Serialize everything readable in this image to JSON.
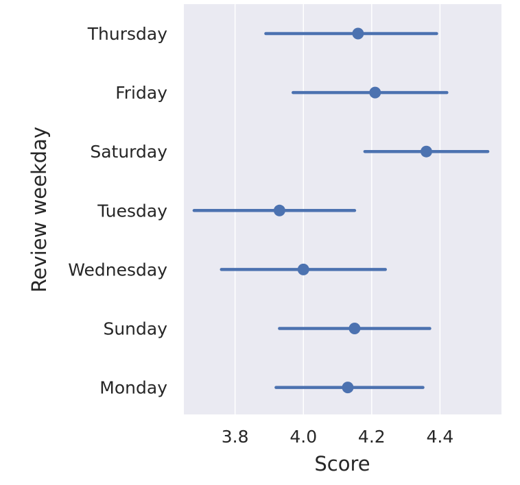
{
  "chart_data": {
    "type": "pointplot",
    "orientation": "horizontal",
    "xlabel": "Score",
    "ylabel": "Review weekday",
    "xlim": [
      3.65,
      4.58
    ],
    "xticks": [
      3.8,
      4.0,
      4.2,
      4.4
    ],
    "xtick_labels": [
      "3.8",
      "4.0",
      "4.2",
      "4.4"
    ],
    "grid": "vertical",
    "colors": {
      "background": "#eaeaf2",
      "grid": "#ffffff",
      "point": "#4c72b0"
    },
    "categories": [
      "Thursday",
      "Friday",
      "Saturday",
      "Tuesday",
      "Wednesday",
      "Sunday",
      "Monday"
    ],
    "values": [
      4.16,
      4.21,
      4.36,
      3.93,
      4.0,
      4.15,
      4.13
    ],
    "ci_low": [
      3.89,
      3.97,
      4.18,
      3.68,
      3.76,
      3.93,
      3.92
    ],
    "ci_high": [
      4.39,
      4.42,
      4.54,
      4.15,
      4.24,
      4.37,
      4.35
    ]
  }
}
